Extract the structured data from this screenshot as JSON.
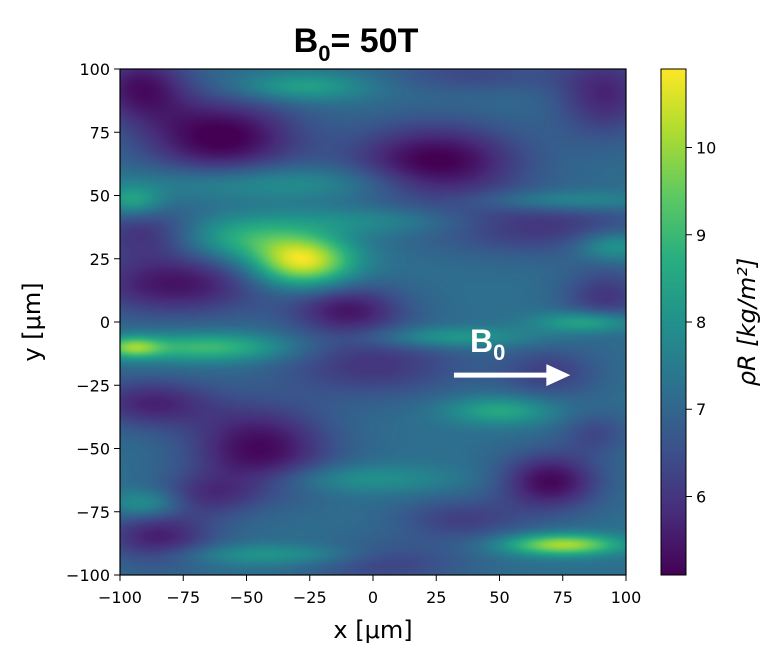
{
  "chart_data": {
    "type": "heatmap",
    "title": "B₀= 50T",
    "title_main": "B",
    "title_sub": "0",
    "title_rest": "= 50T",
    "xlabel": "x [μm]",
    "ylabel": "y [μm]",
    "colorbar_label": "ρR [kg/m²]",
    "xlim": [
      -100,
      100
    ],
    "ylim": [
      -100,
      100
    ],
    "clim": [
      5.1,
      10.9
    ],
    "colormap": "viridis",
    "xticks": [
      -100,
      -75,
      -50,
      -25,
      0,
      25,
      50,
      75,
      100
    ],
    "yticks": [
      -100,
      -75,
      -50,
      -25,
      0,
      25,
      50,
      75,
      100
    ],
    "xtick_labels": [
      "−100",
      "−75",
      "−50",
      "−25",
      "0",
      "25",
      "50",
      "75",
      "100"
    ],
    "ytick_labels": [
      "−100",
      "−75",
      "−50",
      "−25",
      "0",
      "25",
      "50",
      "75",
      "100"
    ],
    "colorbar_ticks": [
      6,
      7,
      8,
      9,
      10
    ],
    "colorbar_tick_labels": [
      "6",
      "7",
      "8",
      "9",
      "10"
    ],
    "baseline_value": 7.2,
    "field_features": [
      {
        "kind": "low",
        "x": -92,
        "y": 93,
        "sx": 14,
        "sy": 10,
        "a": -1.8
      },
      {
        "kind": "low",
        "x": -60,
        "y": 73,
        "sx": 22,
        "sy": 11,
        "a": -2.2
      },
      {
        "kind": "low",
        "x": 25,
        "y": 63,
        "sx": 24,
        "sy": 11,
        "a": -2.2
      },
      {
        "kind": "low",
        "x": 92,
        "y": 90,
        "sx": 14,
        "sy": 12,
        "a": -1.5
      },
      {
        "kind": "low",
        "x": 65,
        "y": 38,
        "sx": 30,
        "sy": 8,
        "a": -1.2
      },
      {
        "kind": "low",
        "x": -90,
        "y": 35,
        "sx": 16,
        "sy": 7,
        "a": -1.2
      },
      {
        "kind": "low",
        "x": -78,
        "y": 15,
        "sx": 26,
        "sy": 9,
        "a": -1.8
      },
      {
        "kind": "low",
        "x": -10,
        "y": 5,
        "sx": 16,
        "sy": 7,
        "a": -1.7
      },
      {
        "kind": "low",
        "x": 92,
        "y": 10,
        "sx": 12,
        "sy": 8,
        "a": -1.2
      },
      {
        "kind": "low",
        "x": 0,
        "y": -17,
        "sx": 26,
        "sy": 9,
        "a": -1.2
      },
      {
        "kind": "low",
        "x": 70,
        "y": -20,
        "sx": 14,
        "sy": 7,
        "a": -1.0
      },
      {
        "kind": "low",
        "x": -88,
        "y": -32,
        "sx": 18,
        "sy": 7,
        "a": -1.5
      },
      {
        "kind": "low",
        "x": -45,
        "y": -50,
        "sx": 20,
        "sy": 12,
        "a": -2.0
      },
      {
        "kind": "low",
        "x": 70,
        "y": -63,
        "sx": 14,
        "sy": 8,
        "a": -2.0
      },
      {
        "kind": "low",
        "x": 88,
        "y": -44,
        "sx": 10,
        "sy": 6,
        "a": -0.8
      },
      {
        "kind": "low",
        "x": -85,
        "y": -85,
        "sx": 16,
        "sy": 8,
        "a": -1.6
      },
      {
        "kind": "low",
        "x": -65,
        "y": -68,
        "sx": 14,
        "sy": 6,
        "a": -1.0
      },
      {
        "kind": "low",
        "x": 35,
        "y": -78,
        "sx": 18,
        "sy": 6,
        "a": -1.0
      },
      {
        "kind": "low",
        "x": 5,
        "y": -95,
        "sx": 22,
        "sy": 6,
        "a": -1.0
      },
      {
        "kind": "low",
        "x": 40,
        "y": 98,
        "sx": 25,
        "sy": 5,
        "a": -0.8
      },
      {
        "kind": "high",
        "x": -28,
        "y": 24,
        "sx": 14,
        "sy": 7,
        "a": 3.6
      },
      {
        "kind": "high",
        "x": -52,
        "y": 33,
        "sx": 18,
        "sy": 6,
        "a": 1.5
      },
      {
        "kind": "high",
        "x": -65,
        "y": -10,
        "sx": 22,
        "sy": 4,
        "a": 1.9
      },
      {
        "kind": "high",
        "x": -95,
        "y": -10,
        "sx": 8,
        "sy": 3,
        "a": 2.2
      },
      {
        "kind": "high",
        "x": 75,
        "y": -88,
        "sx": 16,
        "sy": 3,
        "a": 3.0
      },
      {
        "kind": "high",
        "x": -28,
        "y": 93,
        "sx": 18,
        "sy": 4,
        "a": 1.3
      },
      {
        "kind": "high",
        "x": -40,
        "y": 55,
        "sx": 40,
        "sy": 5,
        "a": 1.0
      },
      {
        "kind": "high",
        "x": 0,
        "y": 40,
        "sx": 30,
        "sy": 4,
        "a": 0.8
      },
      {
        "kind": "high",
        "x": 30,
        "y": -6,
        "sx": 22,
        "sy": 3,
        "a": 1.2
      },
      {
        "kind": "high",
        "x": 50,
        "y": -35,
        "sx": 15,
        "sy": 4,
        "a": 1.4
      },
      {
        "kind": "high",
        "x": 85,
        "y": 0,
        "sx": 14,
        "sy": 3,
        "a": 1.6
      },
      {
        "kind": "high",
        "x": 75,
        "y": 48,
        "sx": 25,
        "sy": 3,
        "a": 1.0
      },
      {
        "kind": "high",
        "x": -5,
        "y": -62,
        "sx": 25,
        "sy": 4,
        "a": 0.9
      },
      {
        "kind": "high",
        "x": -95,
        "y": 48,
        "sx": 8,
        "sy": 4,
        "a": 1.3
      },
      {
        "kind": "high",
        "x": -90,
        "y": -72,
        "sx": 10,
        "sy": 4,
        "a": 1.2
      },
      {
        "kind": "high",
        "x": -40,
        "y": -92,
        "sx": 28,
        "sy": 3,
        "a": 1.0
      },
      {
        "kind": "high",
        "x": 95,
        "y": 30,
        "sx": 10,
        "sy": 4,
        "a": 1.3
      }
    ],
    "annotation": {
      "text_main": "B",
      "text_sub": "0",
      "arrow_from": [
        32,
        -21
      ],
      "arrow_to": [
        78,
        -21
      ],
      "arrow_color": "#ffffff"
    }
  }
}
